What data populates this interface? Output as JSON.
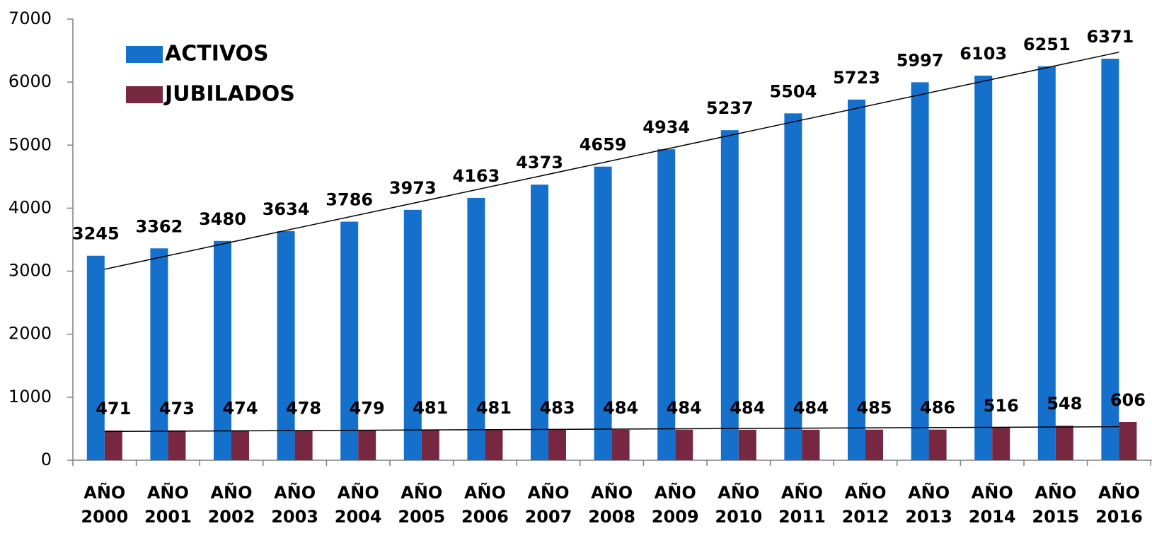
{
  "chart_data": {
    "type": "bar",
    "categories": [
      "AÑO 2000",
      "AÑO 2001",
      "AÑO 2002",
      "AÑO 2003",
      "AÑO 2004",
      "AÑO 2005",
      "AÑO 2006",
      "AÑO 2007",
      "AÑO 2008",
      "AÑO 2009",
      "AÑO 2010",
      "AÑO 2011",
      "AÑO 2012",
      "AÑO 2013",
      "AÑO 2014",
      "AÑO 2015",
      "AÑO 2016"
    ],
    "series": [
      {
        "name": "ACTIVOS",
        "color": "#1570cc",
        "values": [
          3245,
          3362,
          3480,
          3634,
          3786,
          3973,
          4163,
          4373,
          4659,
          4934,
          5237,
          5504,
          5723,
          5997,
          6103,
          6251,
          6371
        ]
      },
      {
        "name": "JUBILADOS",
        "color": "#772840",
        "values": [
          471,
          473,
          474,
          478,
          479,
          481,
          481,
          483,
          484,
          484,
          484,
          484,
          485,
          486,
          516,
          548,
          606
        ]
      }
    ],
    "ylim": [
      0,
      7000
    ],
    "yticks": [
      0,
      1000,
      2000,
      3000,
      4000,
      5000,
      6000,
      7000
    ],
    "trendline": true,
    "legend": "upper left"
  }
}
